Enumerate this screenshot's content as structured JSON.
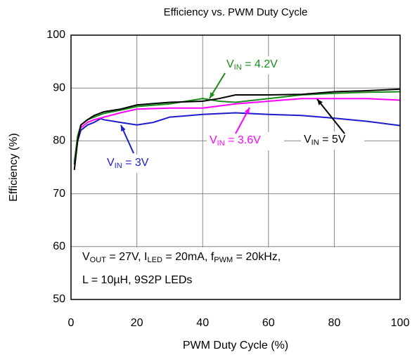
{
  "chart_data": {
    "type": "line",
    "title": "Efficiency vs. PWM Duty Cycle",
    "xlabel": "PWM Duty Cycle (%)",
    "ylabel": "Efficiency (%)",
    "xlim": [
      0,
      100
    ],
    "xticks": [
      0,
      20,
      40,
      60,
      80,
      100
    ],
    "ylim": [
      50,
      100
    ],
    "yticks": [
      50,
      60,
      70,
      80,
      90,
      100
    ],
    "grid": true,
    "series": [
      {
        "label": [
          "V",
          "IN",
          " = 3V"
        ],
        "color": "#1c1ccf",
        "x": [
          1,
          2,
          3,
          5,
          7,
          9,
          10,
          15,
          20,
          25,
          30,
          40,
          50,
          60,
          70,
          80,
          90,
          100
        ],
        "values": [
          75.5,
          80,
          82,
          83,
          83.5,
          84.2,
          84,
          83.5,
          83,
          83.5,
          84.5,
          85,
          85.3,
          85,
          84.8,
          84.3,
          83.7,
          82.9
        ]
      },
      {
        "label": [
          "V",
          "IN",
          " = 3.6V"
        ],
        "color": "#ff00ff",
        "x": [
          1,
          2,
          3,
          5,
          7,
          10,
          15,
          20,
          30,
          40,
          50,
          60,
          70,
          80,
          90,
          100
        ],
        "values": [
          76,
          80.5,
          82.5,
          83.5,
          84,
          84.5,
          85.3,
          86,
          86.2,
          86.2,
          87,
          87.5,
          88,
          88,
          88,
          87.7
        ]
      },
      {
        "label": [
          "V",
          "IN",
          " = 4.2V"
        ],
        "color": "#1a8a1a",
        "x": [
          1,
          2,
          3,
          5,
          7,
          10,
          15,
          20,
          30,
          40,
          45,
          50,
          60,
          70,
          80,
          90,
          100
        ],
        "values": [
          76,
          81,
          83,
          84,
          84.5,
          85.2,
          85.8,
          86.5,
          87,
          88,
          87.5,
          87.3,
          88,
          88.7,
          89,
          89.2,
          89.3
        ]
      },
      {
        "label": [
          "V",
          "IN",
          " = 5V"
        ],
        "color": "#000000",
        "x": [
          1,
          2,
          3,
          5,
          7,
          10,
          15,
          20,
          30,
          40,
          45,
          50,
          60,
          70,
          80,
          90,
          100
        ],
        "values": [
          74.5,
          80,
          83,
          84,
          84.8,
          85.5,
          86,
          86.8,
          87.3,
          87.5,
          88,
          88.7,
          88.7,
          88.8,
          89.3,
          89.5,
          89.8
        ]
      }
    ],
    "note": [
      [
        "V",
        "OUT",
        " = 27V,  I",
        "LED",
        " = 20mA, f",
        "PWM",
        " = 20kHz,"
      ],
      [
        "L = 10µH, 9S2P LEDs"
      ]
    ]
  }
}
